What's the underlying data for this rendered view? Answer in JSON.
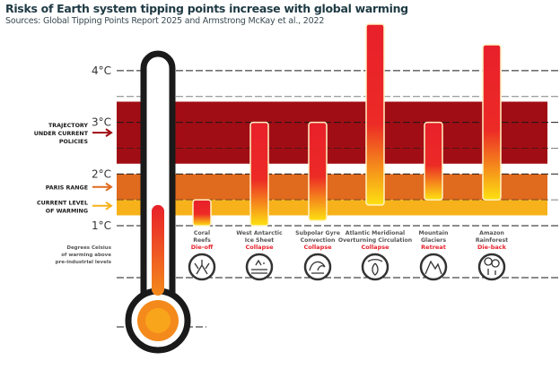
{
  "title": "Risks of Earth system tipping points increase with global warming",
  "subtitle": "Sources: Global Tipping Points Report 2025 and Armstrong McKay et al., 2022",
  "chart_data": {
    "type": "bar",
    "orientation": "vertical-range",
    "ylabel": "Degrees Celsius of warming above pre-industrial levels",
    "ylim": [
      1.0,
      4.0
    ],
    "yticks": [
      "1°C",
      "2°C",
      "3°C",
      "4°C"
    ],
    "grid": true,
    "bands": [
      {
        "label": "TRAJECTORY UNDER CURRENT POLICIES",
        "range": [
          2.2,
          3.4
        ],
        "color": "#a10d14"
      },
      {
        "label": "PARIS RANGE",
        "range": [
          1.5,
          2.0
        ],
        "color": "#e06a1e"
      },
      {
        "label": "CURRENT LEVEL OF WARMING",
        "range": [
          1.2,
          1.5
        ],
        "color": "#f7b21b"
      }
    ],
    "thermometer_level": 1.4,
    "categories": [
      {
        "name": "Coral Reefs",
        "impact": "Die-off",
        "icon": "coral-icon",
        "range": [
          1.0,
          1.5
        ]
      },
      {
        "name": "West Antarctic Ice Sheet",
        "impact": "Collapse",
        "icon": "ice-sheet-icon",
        "range": [
          1.0,
          3.0
        ]
      },
      {
        "name": "Subpolar Gyre Convection",
        "impact": "Collapse",
        "icon": "wave-icon",
        "range": [
          1.1,
          3.0
        ]
      },
      {
        "name": "Atlantic Meridional Overturning Circulation",
        "impact": "Collapse",
        "icon": "ocean-current-icon",
        "range": [
          1.4,
          4.9
        ]
      },
      {
        "name": "Mountain Glaciers",
        "impact": "Retreat",
        "icon": "mountain-icon",
        "range": [
          1.5,
          3.0
        ]
      },
      {
        "name": "Amazon Rainforest",
        "impact": "Die-back",
        "icon": "forest-icon",
        "range": [
          1.5,
          4.5
        ]
      }
    ],
    "colors": {
      "bar_top": "#e8202a",
      "bar_bottom": "#fde112",
      "impact_text": "#e8202a",
      "thermometer": "#1a1a1a"
    }
  }
}
